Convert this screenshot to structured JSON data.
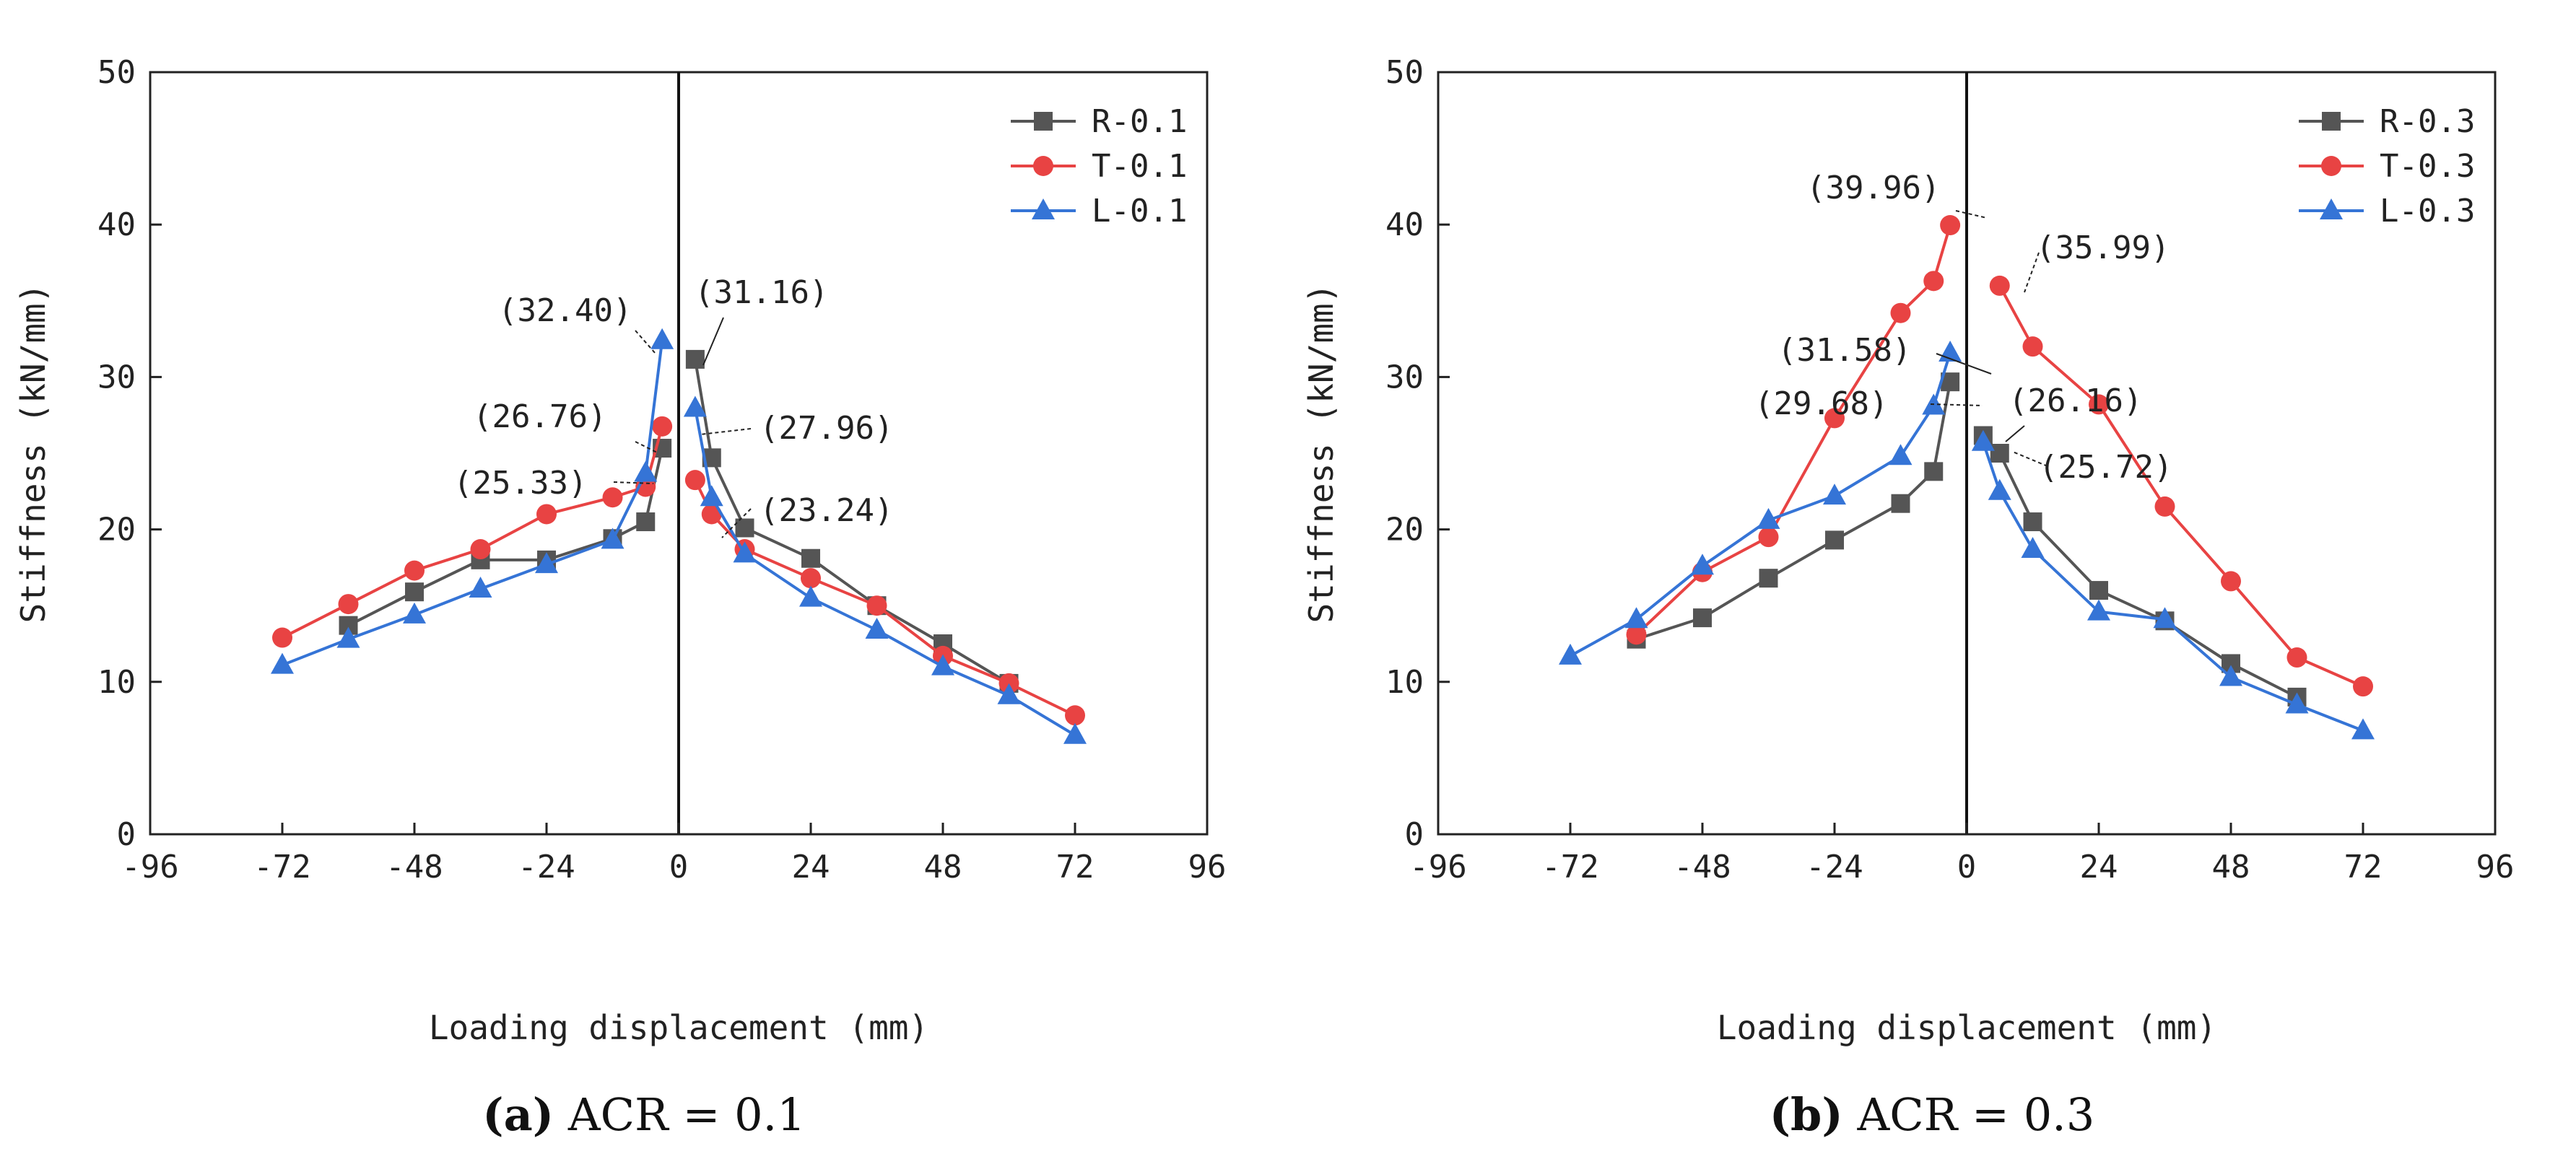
{
  "chart_data": [
    {
      "type": "line",
      "xlabel": "Loading displacement (mm)",
      "ylabel": "Stiffness (kN/mm)",
      "xlim": [
        -96,
        96
      ],
      "ylim": [
        0,
        50
      ],
      "xticks": [
        "-96",
        "-72",
        "-48",
        "-24",
        "0",
        "24",
        "48",
        "72",
        "96"
      ],
      "yticks": [
        "0",
        "10",
        "20",
        "30",
        "40",
        "50"
      ],
      "legend": "top-right",
      "caption_label": "(a)",
      "caption_text": "ACR = 0.1",
      "series": [
        {
          "name": "R-0.1",
          "color": "#555555",
          "marker": "square",
          "x": [
            -60,
            -48,
            -36,
            -24,
            -12,
            -6,
            -3,
            3,
            6,
            12,
            24,
            36,
            48,
            60
          ],
          "y": [
            13.7,
            15.9,
            18.0,
            18.0,
            19.4,
            20.5,
            25.33,
            31.16,
            24.7,
            20.1,
            18.1,
            15.0,
            12.5,
            9.9
          ]
        },
        {
          "name": "T-0.1",
          "color": "#e84343",
          "marker": "circle",
          "x": [
            -72,
            -60,
            -48,
            -36,
            -24,
            -12,
            -6,
            -3,
            3,
            6,
            12,
            24,
            36,
            48,
            60,
            72
          ],
          "y": [
            12.9,
            15.1,
            17.3,
            18.7,
            21.0,
            22.1,
            22.8,
            26.76,
            23.24,
            21.0,
            18.7,
            16.8,
            15.0,
            11.7,
            9.9,
            7.8
          ]
        },
        {
          "name": "L-0.1",
          "color": "#3574d6",
          "marker": "triangle",
          "x": [
            -72,
            -60,
            -48,
            -36,
            -24,
            -12,
            -6,
            -3,
            3,
            6,
            12,
            24,
            36,
            48,
            60,
            72
          ],
          "y": [
            11.1,
            12.8,
            14.4,
            16.1,
            17.7,
            19.3,
            23.7,
            32.4,
            27.96,
            22.1,
            18.4,
            15.5,
            13.4,
            11.0,
            9.1,
            6.5
          ]
        }
      ],
      "annotations": [
        "(32.40)",
        "(31.16)",
        "(26.76)",
        "(27.96)",
        "(25.33)",
        "(23.24)"
      ]
    },
    {
      "type": "line",
      "xlabel": "Loading displacement (mm)",
      "ylabel": "Stiffness (kN/mm)",
      "xlim": [
        -96,
        96
      ],
      "ylim": [
        0,
        50
      ],
      "xticks": [
        "-96",
        "-72",
        "-48",
        "-24",
        "0",
        "24",
        "48",
        "72",
        "96"
      ],
      "yticks": [
        "0",
        "10",
        "20",
        "30",
        "40",
        "50"
      ],
      "legend": "top-right",
      "caption_label": "(b)",
      "caption_text": "ACR = 0.3",
      "series": [
        {
          "name": "R-0.3",
          "color": "#555555",
          "marker": "square",
          "x": [
            -60,
            -48,
            -36,
            -24,
            -12,
            -6,
            -3,
            3,
            6,
            12,
            24,
            36,
            48,
            60
          ],
          "y": [
            12.8,
            14.2,
            16.8,
            19.3,
            21.7,
            23.8,
            29.68,
            26.16,
            25.0,
            20.5,
            16.0,
            14.0,
            11.2,
            9.0
          ]
        },
        {
          "name": "T-0.3",
          "color": "#e84343",
          "marker": "circle",
          "x": [
            -60,
            -48,
            -36,
            -24,
            -12,
            -6,
            -3,
            6,
            12,
            24,
            36,
            48,
            60,
            72
          ],
          "y": [
            13.1,
            17.2,
            19.5,
            27.3,
            34.2,
            36.3,
            39.96,
            35.99,
            32.0,
            28.2,
            21.5,
            16.6,
            11.6,
            9.7
          ]
        },
        {
          "name": "L-0.3",
          "color": "#3574d6",
          "marker": "triangle",
          "x": [
            -72,
            -60,
            -48,
            -36,
            -24,
            -12,
            -6,
            -3,
            3,
            6,
            12,
            24,
            36,
            48,
            60,
            72
          ],
          "y": [
            11.7,
            14.1,
            17.6,
            20.6,
            22.2,
            24.8,
            28.1,
            31.58,
            25.72,
            22.5,
            18.7,
            14.6,
            14.1,
            10.3,
            8.5,
            6.8
          ]
        }
      ],
      "annotations": [
        "(39.96)",
        "(35.99)",
        "(31.58)",
        "(29.68)",
        "(26.16)",
        "(25.72)"
      ]
    }
  ]
}
